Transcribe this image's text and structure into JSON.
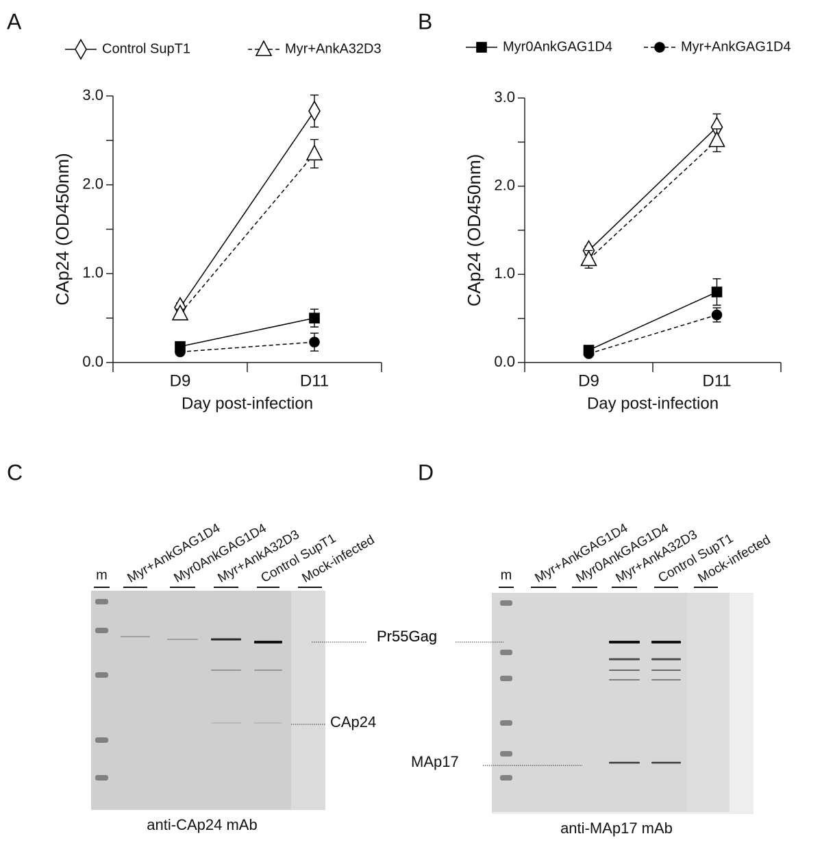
{
  "chart_data": [
    {
      "type": "line",
      "panel": "A",
      "categories": [
        "D9",
        "D11"
      ],
      "xlabel": "Day post-infection",
      "ylabel": "CAp24 (OD450nm)",
      "ylim": [
        0,
        3
      ],
      "yticks": [
        {
          "value": 0,
          "label": "0.0"
        },
        {
          "value": 1,
          "label": "1.0"
        },
        {
          "value": 2,
          "label": "2.0"
        },
        {
          "value": 3,
          "label": "3.0"
        }
      ],
      "yminorticks": [
        0.5,
        1.5,
        2.5
      ],
      "series": [
        {
          "name": "Control SupT1",
          "color": "#000000",
          "marker": "diamond",
          "dash": false,
          "values": [
            0.62,
            2.83
          ],
          "errors": [
            0.05,
            0.18
          ]
        },
        {
          "name": "Myr+AnkA32D3",
          "color": "#000000",
          "marker": "triangle",
          "dash": true,
          "values": [
            0.55,
            2.35
          ],
          "errors": [
            0.05,
            0.16
          ]
        },
        {
          "color": "#000000",
          "marker": "square",
          "dash": false,
          "values": [
            0.18,
            0.5
          ],
          "errors": [
            0.04,
            0.1
          ]
        },
        {
          "color": "#000000",
          "marker": "circle",
          "dash": true,
          "values": [
            0.12,
            0.23
          ],
          "errors": [
            0.03,
            0.1
          ]
        }
      ]
    },
    {
      "type": "line",
      "panel": "B",
      "categories": [
        "D9",
        "D11"
      ],
      "xlabel": "Day post-infection",
      "ylabel": "CAp24 (OD450nm)",
      "ylim": [
        0,
        3
      ],
      "yticks": [
        {
          "value": 0,
          "label": "0.0"
        },
        {
          "value": 1,
          "label": "1.0"
        },
        {
          "value": 2,
          "label": "2.0"
        },
        {
          "value": 3,
          "label": "3.0"
        }
      ],
      "yminorticks": [
        0.5,
        1.5,
        2.5
      ],
      "series": [
        {
          "color": "#000000",
          "marker": "diamond",
          "dash": false,
          "values": [
            1.27,
            2.67
          ],
          "errors": [
            0.05,
            0.15
          ]
        },
        {
          "color": "#000000",
          "marker": "triangle",
          "dash": true,
          "values": [
            1.17,
            2.52
          ],
          "errors": [
            0.1,
            0.13
          ]
        },
        {
          "name": "Myr0AnkGAG1D4",
          "color": "#000000",
          "marker": "square",
          "dash": false,
          "values": [
            0.14,
            0.8
          ],
          "errors": [
            0.03,
            0.15
          ]
        },
        {
          "name": "Myr+AnkGAG1D4",
          "color": "#000000",
          "marker": "circle",
          "dash": true,
          "values": [
            0.1,
            0.54
          ],
          "errors": [
            0.03,
            0.08
          ]
        }
      ]
    }
  ],
  "blots": [
    {
      "panel": "C",
      "marker_lane": "m",
      "lanes": [
        "Myr+AnkGAG1D4",
        "Myr0AnkGAG1D4",
        "Myr+AnkA32D3",
        "Control SupT1",
        "Mock-infected"
      ],
      "annotations": [
        "Pr55Gag",
        "CAp24"
      ],
      "caption": "anti-CAp24 mAb"
    },
    {
      "panel": "D",
      "marker_lane": "m",
      "lanes": [
        "Myr+AnkGAG1D4",
        "Myr0AnkGAG1D4",
        "Myr+AnkA32D3",
        "Control SupT1",
        "Mock-infected"
      ],
      "annotations": [
        "Pr55Gag",
        "MAp17"
      ],
      "caption": "anti-MAp17 mAb"
    }
  ]
}
